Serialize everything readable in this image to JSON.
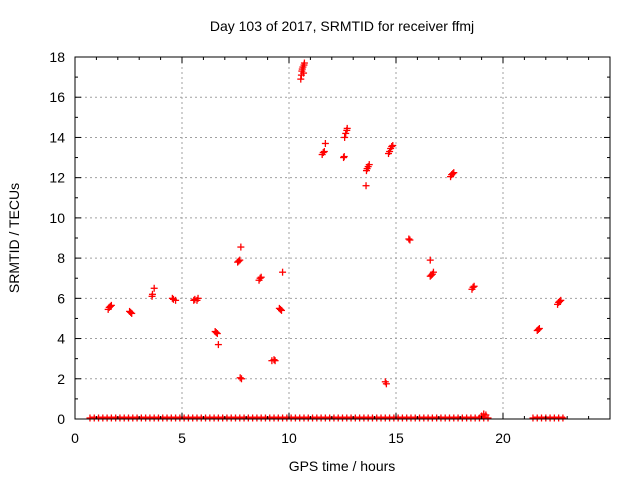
{
  "chart_data": {
    "type": "scatter",
    "title": "Day 103 of 2017, SRMTID for receiver ffmj",
    "xlabel": "GPS time / hours",
    "ylabel": "SRMTID / TECUs",
    "xlim": [
      0,
      25
    ],
    "ylim": [
      0,
      18
    ],
    "xticks": [
      0,
      5,
      10,
      15,
      20
    ],
    "yticks": [
      0,
      2,
      4,
      6,
      8,
      10,
      12,
      14,
      16,
      18
    ],
    "grid": true,
    "marker": "+",
    "marker_color": "#ff0000",
    "baseline": {
      "y": 0.05,
      "segments": [
        [
          0.7,
          19.3
        ],
        [
          21.4,
          22.9
        ]
      ]
    },
    "points": [
      [
        1.55,
        5.45
      ],
      [
        1.6,
        5.55
      ],
      [
        1.65,
        5.6
      ],
      [
        1.7,
        5.65
      ],
      [
        2.55,
        5.35
      ],
      [
        2.6,
        5.3
      ],
      [
        2.65,
        5.25
      ],
      [
        3.6,
        6.1
      ],
      [
        3.62,
        6.2
      ],
      [
        3.7,
        6.5
      ],
      [
        4.55,
        6.0
      ],
      [
        4.6,
        5.95
      ],
      [
        4.7,
        5.9
      ],
      [
        5.55,
        5.9
      ],
      [
        5.6,
        5.95
      ],
      [
        5.7,
        5.9
      ],
      [
        5.75,
        6.0
      ],
      [
        6.55,
        4.35
      ],
      [
        6.6,
        4.3
      ],
      [
        6.65,
        4.25
      ],
      [
        6.7,
        3.7
      ],
      [
        7.6,
        7.8
      ],
      [
        7.65,
        7.85
      ],
      [
        7.7,
        7.9
      ],
      [
        7.75,
        8.55
      ],
      [
        7.72,
        2.05
      ],
      [
        7.78,
        2.0
      ],
      [
        8.6,
        6.9
      ],
      [
        8.65,
        7.0
      ],
      [
        8.7,
        7.05
      ],
      [
        9.3,
        2.95
      ],
      [
        9.35,
        2.9
      ],
      [
        9.2,
        2.9
      ],
      [
        9.55,
        5.5
      ],
      [
        9.6,
        5.45
      ],
      [
        9.65,
        5.4
      ],
      [
        9.7,
        7.3
      ],
      [
        10.55,
        16.9
      ],
      [
        10.58,
        17.1
      ],
      [
        10.6,
        17.3
      ],
      [
        10.62,
        17.4
      ],
      [
        10.65,
        17.5
      ],
      [
        10.7,
        17.6
      ],
      [
        10.72,
        17.7
      ],
      [
        10.68,
        17.2
      ],
      [
        11.55,
        13.15
      ],
      [
        11.6,
        13.25
      ],
      [
        11.65,
        13.3
      ],
      [
        11.7,
        13.7
      ],
      [
        12.55,
        13.0
      ],
      [
        12.58,
        13.05
      ],
      [
        12.6,
        14.0
      ],
      [
        12.65,
        14.2
      ],
      [
        12.7,
        14.35
      ],
      [
        12.72,
        14.45
      ],
      [
        13.6,
        11.6
      ],
      [
        13.62,
        12.35
      ],
      [
        13.65,
        12.45
      ],
      [
        13.7,
        12.55
      ],
      [
        13.75,
        12.65
      ],
      [
        14.5,
        1.85
      ],
      [
        14.55,
        1.75
      ],
      [
        14.65,
        13.2
      ],
      [
        14.7,
        13.3
      ],
      [
        14.75,
        13.45
      ],
      [
        14.8,
        13.55
      ],
      [
        14.85,
        13.6
      ],
      [
        15.6,
        8.95
      ],
      [
        15.65,
        8.9
      ],
      [
        16.6,
        7.1
      ],
      [
        16.65,
        7.15
      ],
      [
        16.7,
        7.2
      ],
      [
        16.75,
        7.3
      ],
      [
        16.6,
        7.9
      ],
      [
        17.55,
        12.05
      ],
      [
        17.6,
        12.15
      ],
      [
        17.65,
        12.2
      ],
      [
        17.7,
        12.25
      ],
      [
        18.55,
        6.45
      ],
      [
        18.6,
        6.55
      ],
      [
        18.65,
        6.6
      ],
      [
        19.0,
        0.15
      ],
      [
        19.1,
        0.25
      ],
      [
        19.2,
        0.2
      ],
      [
        21.6,
        4.4
      ],
      [
        21.65,
        4.45
      ],
      [
        21.7,
        4.5
      ],
      [
        22.55,
        5.7
      ],
      [
        22.6,
        5.8
      ],
      [
        22.65,
        5.85
      ],
      [
        22.7,
        5.9
      ]
    ]
  }
}
